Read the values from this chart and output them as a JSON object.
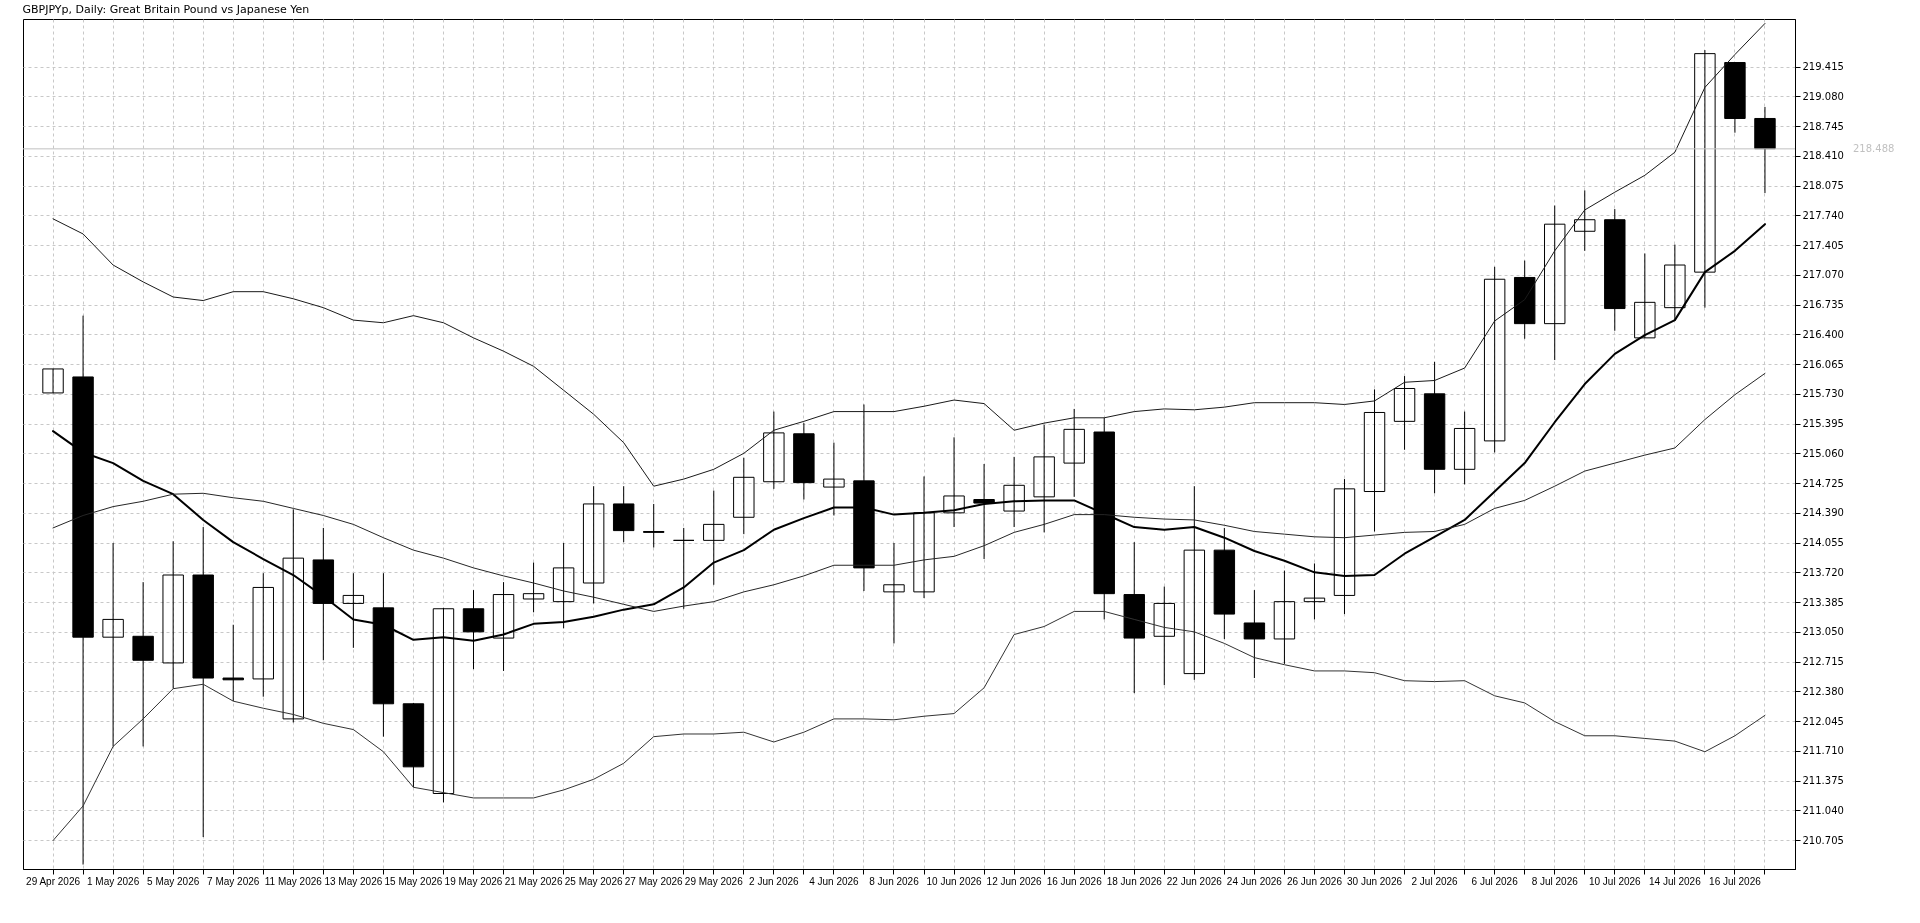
{
  "chart_data": {
    "type": "candlestick",
    "title": "GBPJPYp, Daily:  Great Britain Pound vs Japanese Yen",
    "categories": [
      "29 Apr 2026",
      null,
      "1 May 2026",
      null,
      "5 May 2026",
      null,
      "7 May 2026",
      null,
      "11 May 2026",
      null,
      "13 May 2026",
      null,
      "15 May 2026",
      null,
      "19 May 2026",
      null,
      "21 May 2026",
      null,
      "25 May 2026",
      null,
      "27 May 2026",
      null,
      "29 May 2026",
      null,
      "2 Jun 2026",
      null,
      "4 Jun 2026",
      null,
      "8 Jun 2026",
      null,
      "10 Jun 2026",
      null,
      "12 Jun 2026",
      null,
      "16 Jun 2026",
      null,
      "18 Jun 2026",
      null,
      "22 Jun 2026",
      null,
      "24 Jun 2026",
      null,
      "26 Jun 2026",
      null,
      "30 Jun 2026",
      null,
      "2 Jul 2026",
      null,
      "6 Jul 2026",
      null,
      "8 Jul 2026",
      null,
      "10 Jul 2026",
      null,
      "14 Jul 2026",
      null,
      "16 Jul 2026",
      null
    ],
    "ohlc": [
      [
        215.74,
        216.01,
        215.74,
        216.01
      ],
      [
        215.92,
        216.61,
        210.43,
        212.99
      ],
      [
        212.99,
        214.05,
        211.76,
        213.19
      ],
      [
        213.0,
        213.61,
        211.76,
        212.73
      ],
      [
        212.7,
        214.07,
        212.41,
        213.69
      ],
      [
        213.69,
        214.23,
        210.74,
        212.53
      ],
      [
        212.53,
        213.13,
        212.27,
        212.51
      ],
      [
        212.52,
        213.71,
        212.32,
        213.55
      ],
      [
        212.07,
        214.43,
        212.03,
        213.88
      ],
      [
        213.86,
        214.22,
        212.73,
        213.37
      ],
      [
        213.37,
        213.71,
        212.87,
        213.46
      ],
      [
        213.32,
        213.71,
        211.87,
        212.24
      ],
      [
        212.24,
        212.25,
        211.3,
        211.53
      ],
      [
        211.23,
        213.32,
        211.13,
        213.31
      ],
      [
        213.31,
        213.52,
        212.63,
        213.05
      ],
      [
        212.98,
        213.61,
        212.61,
        213.47
      ],
      [
        213.42,
        213.83,
        213.27,
        213.48
      ],
      [
        213.39,
        214.05,
        213.09,
        213.77
      ],
      [
        213.6,
        214.69,
        213.37,
        214.49
      ],
      [
        214.49,
        214.69,
        214.06,
        214.19
      ],
      [
        214.18,
        214.49,
        214.0,
        214.17
      ],
      [
        214.08,
        214.22,
        213.31,
        214.08
      ],
      [
        214.08,
        214.64,
        213.58,
        214.26
      ],
      [
        214.34,
        215.01,
        214.15,
        214.79
      ],
      [
        214.74,
        215.53,
        214.66,
        215.29
      ],
      [
        215.28,
        215.4,
        214.54,
        214.73
      ],
      [
        214.68,
        215.18,
        214.36,
        214.77
      ],
      [
        214.75,
        215.61,
        213.51,
        213.77
      ],
      [
        213.5,
        214.05,
        212.92,
        213.58
      ],
      [
        213.5,
        214.8,
        213.43,
        214.39
      ],
      [
        214.39,
        215.24,
        214.23,
        214.58
      ],
      [
        214.54,
        214.94,
        213.87,
        214.5
      ],
      [
        214.41,
        215.02,
        214.23,
        214.7
      ],
      [
        214.57,
        215.38,
        214.17,
        215.02
      ],
      [
        214.95,
        215.56,
        214.57,
        215.33
      ],
      [
        215.3,
        215.46,
        213.19,
        213.48
      ],
      [
        213.47,
        214.06,
        212.36,
        212.98
      ],
      [
        213.0,
        213.56,
        212.45,
        213.37
      ],
      [
        212.58,
        214.69,
        212.51,
        213.97
      ],
      [
        213.97,
        214.22,
        212.97,
        213.25
      ],
      [
        213.15,
        213.52,
        212.53,
        212.97
      ],
      [
        212.97,
        213.74,
        212.69,
        213.39
      ],
      [
        213.39,
        213.82,
        213.19,
        213.43
      ],
      [
        213.46,
        214.77,
        213.25,
        214.66
      ],
      [
        214.63,
        215.78,
        214.18,
        215.52
      ],
      [
        215.42,
        215.93,
        215.1,
        215.79
      ],
      [
        215.73,
        216.09,
        214.61,
        214.88
      ],
      [
        214.88,
        215.53,
        214.71,
        215.34
      ],
      [
        215.2,
        217.16,
        215.07,
        217.02
      ],
      [
        217.04,
        217.23,
        216.35,
        216.52
      ],
      [
        216.52,
        217.85,
        216.11,
        217.64
      ],
      [
        217.56,
        218.02,
        217.34,
        217.69
      ],
      [
        217.69,
        217.81,
        216.44,
        216.69
      ],
      [
        216.36,
        217.31,
        216.36,
        216.76
      ],
      [
        216.7,
        217.41,
        216.56,
        217.18
      ],
      [
        217.1,
        219.6,
        216.7,
        219.56
      ],
      [
        219.46,
        219.46,
        218.67,
        218.83
      ],
      [
        218.83,
        218.96,
        217.99,
        218.49
      ]
    ],
    "series": [
      {
        "type": "line",
        "color": "#000000",
        "values": [
          215.31,
          215.07,
          214.95,
          214.75,
          214.6,
          214.31,
          214.06,
          213.87,
          213.69,
          213.45,
          213.19,
          213.13,
          212.96,
          212.99,
          212.95,
          213.02,
          213.14,
          213.16,
          213.22,
          213.3,
          213.36,
          213.55,
          213.83,
          213.97,
          214.2,
          214.33,
          214.45,
          214.45,
          214.37,
          214.39,
          214.42,
          214.49,
          214.52,
          214.53,
          214.53,
          214.38,
          214.23,
          214.2,
          214.23,
          214.11,
          213.96,
          213.85,
          213.72,
          213.68,
          213.69,
          213.93,
          214.12,
          214.31,
          214.63,
          214.95,
          215.41,
          215.84,
          216.18,
          216.39,
          216.56,
          217.1,
          217.34,
          217.64
        ]
      },
      {
        "type": "line",
        "color": "#1a1a1a",
        "values": [
          217.7,
          217.53,
          217.18,
          216.99,
          216.82,
          216.78,
          216.88,
          216.88,
          216.8,
          216.7,
          216.56,
          216.53,
          216.61,
          216.53,
          216.36,
          216.21,
          216.04,
          215.77,
          215.5,
          215.18,
          214.69,
          214.77,
          214.88,
          215.06,
          215.32,
          215.42,
          215.53,
          215.53,
          215.53,
          215.59,
          215.66,
          215.62,
          215.32,
          215.4,
          215.46,
          215.46,
          215.53,
          215.56,
          215.55,
          215.58,
          215.63,
          215.63,
          215.63,
          215.61,
          215.65,
          215.86,
          215.88,
          216.02,
          216.55,
          216.79,
          217.34,
          217.8,
          218.0,
          218.19,
          218.45,
          219.18,
          219.55,
          219.9
        ]
      },
      {
        "type": "line",
        "color": "#262626",
        "values": [
          214.22,
          214.36,
          214.46,
          214.52,
          214.6,
          214.61,
          214.56,
          214.52,
          214.44,
          214.36,
          214.26,
          214.11,
          213.97,
          213.88,
          213.77,
          213.68,
          213.6,
          213.51,
          213.44,
          213.36,
          213.28,
          213.34,
          213.39,
          213.5,
          213.58,
          213.68,
          213.8,
          213.8,
          213.8,
          213.86,
          213.9,
          214.02,
          214.17,
          214.26,
          214.37,
          214.37,
          214.34,
          214.32,
          214.31,
          214.25,
          214.18,
          214.15,
          214.12,
          214.11,
          214.14,
          214.17,
          214.18,
          214.26,
          214.44,
          214.53,
          214.69,
          214.86,
          214.95,
          215.04,
          215.12,
          215.44,
          215.72,
          215.96
        ]
      },
      {
        "type": "line",
        "color": "#333333",
        "values": [
          210.7,
          211.09,
          211.76,
          212.07,
          212.41,
          212.46,
          212.27,
          212.19,
          212.12,
          212.02,
          211.95,
          211.7,
          211.3,
          211.24,
          211.18,
          211.18,
          211.18,
          211.27,
          211.39,
          211.57,
          211.87,
          211.9,
          211.9,
          211.92,
          211.81,
          211.92,
          212.07,
          212.07,
          212.06,
          212.1,
          212.13,
          212.42,
          213.02,
          213.11,
          213.28,
          213.28,
          213.19,
          213.1,
          213.05,
          212.92,
          212.76,
          212.68,
          212.61,
          212.61,
          212.59,
          212.5,
          212.49,
          212.5,
          212.33,
          212.25,
          212.04,
          211.88,
          211.88,
          211.85,
          211.82,
          211.7,
          211.88,
          212.11
        ]
      }
    ],
    "ylim": [
      210.38,
      219.95
    ],
    "yticks": [
      210.705,
      {
        "value": 211.04,
        "label": "211.040"
      },
      211.375,
      {
        "value": 211.71,
        "label": "211.710"
      },
      212.045,
      {
        "value": 212.38,
        "label": "212.380"
      },
      212.715,
      {
        "value": 213.05,
        "label": "213.050"
      },
      213.385,
      {
        "value": 213.72,
        "label": "213.720"
      },
      214.055,
      {
        "value": 214.39,
        "label": "214.390"
      },
      214.725,
      {
        "value": 215.06,
        "label": "215.060"
      },
      215.395,
      {
        "value": 215.73,
        "label": "215.730"
      },
      216.065,
      {
        "value": 216.4,
        "label": "216.400"
      },
      216.735,
      {
        "value": 217.07,
        "label": "217.070"
      },
      217.405,
      {
        "value": 217.74,
        "label": "217.740"
      },
      218.075,
      {
        "value": 218.41,
        "label": "218.410"
      },
      218.745,
      {
        "value": 219.08,
        "label": "219.080"
      },
      219.415
    ],
    "grid": true,
    "ref_lines": [
      {
        "axis": "y",
        "value": 218.488,
        "label": "218.488",
        "color": "#c0c0c0"
      }
    ]
  }
}
